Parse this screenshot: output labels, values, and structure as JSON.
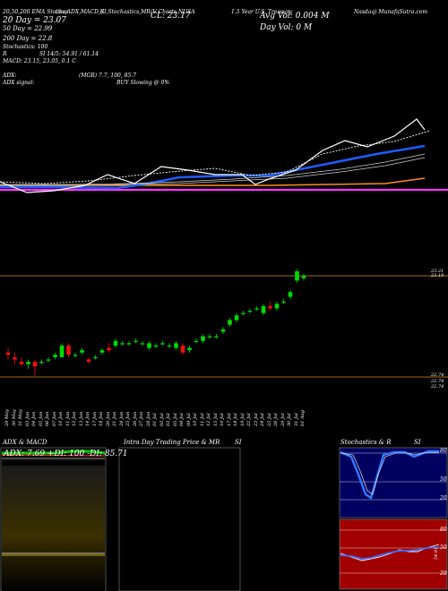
{
  "header": {
    "line1_left": "20,50,200 EMA Stochas",
    "line1_mid": "tics,ADX,MACD,R",
    "line1_mid2": "SI,Stochastics,MR",
    "line1_mid3": "1.5 Year U.S. Treasury",
    "line1_right": "Nasdaq) MunafaSutra.com",
    "symbol": "(V Charts NUSA",
    "cl": "CL: 23.17",
    "avg_vol": "Avg Vol: 0.004  M",
    "day_vol": "Day Vol: 0  M",
    "ema20": "20  Day = 23.07",
    "ema50": "50  Day = 22.99",
    "ema200": "200  Day = 22.8",
    "stoch": "Stochastics: 100",
    "rsi": "SI 14/5: 54.91 / 61.14",
    "rsi_prefix": "R",
    "macd": "MACD: 23.15,  23.05, 0.1 C",
    "adx": "ADX:",
    "adx_val": "(MGR) 7.7,  100,  85.7",
    "adx_signal": "ADX  signal:",
    "buy_signal": "BUY Slowing @ 0%"
  },
  "colors": {
    "ema20": "#ffffff",
    "ema50": "#1e5cff",
    "ema200": "#ff8c1a",
    "pink": "#ff33ff",
    "up": "#00dd00",
    "down": "#ee1111",
    "level": "#a06a1a"
  },
  "price_levels": {
    "top": "23.21",
    "top2": "23.19",
    "bottom1": "22.74",
    "bottom2": "22.74",
    "bottom3": "22.74"
  },
  "dates": [
    "29 May",
    "30 May",
    "31 May",
    "03 Jun",
    "04 Jun",
    "05 Jun",
    "06 Jun",
    "07 Jun",
    "10 Jun",
    "11 Jun",
    "12 Jun",
    "13 Jun",
    "14 Jun",
    "17 Jun",
    "18 Jun",
    "20 Jun",
    "21 Jun",
    "24 Jun",
    "25 Jun",
    "26 Jun",
    "27 Jun",
    "28 Jun",
    "01 Jul",
    "02 Jul",
    "03 Jul",
    "05 Jul",
    "08 Jul",
    "09 Jul",
    "10 Jul",
    "11 Jul",
    "12 Jul",
    "15 Jul",
    "16 Jul",
    "17 Jul",
    "18 Jul",
    "19 Jul",
    "22 Jul",
    "23 Jul",
    "24 Jul",
    "25 Jul",
    "26 Jul",
    "29 Jul",
    "30 Jul",
    "31 Jul",
    "01 Aug"
  ],
  "panels": {
    "adx_title": "ADX  & MACD",
    "adx_readout": "ADX: 7.69  +DI: 100  -DI: 85.71",
    "intraday_title": "Intra  Day Trading Price  & MR",
    "intraday_title2": "SI",
    "stoch_title": "Stochastics & R",
    "stoch_title2": "SI",
    "stoch_labels": [
      "80",
      "50",
      "20"
    ],
    "rsi_labels": [
      "80",
      "50",
      "20"
    ],
    "rsi_value": "54.91"
  },
  "chart_data": {
    "type": "candlestick",
    "title": "",
    "x": [
      "29 May",
      "30 May",
      "31 May",
      "03 Jun",
      "04 Jun",
      "05 Jun",
      "06 Jun",
      "07 Jun",
      "10 Jun",
      "11 Jun",
      "12 Jun",
      "13 Jun",
      "14 Jun",
      "17 Jun",
      "18 Jun",
      "20 Jun",
      "21 Jun",
      "24 Jun",
      "25 Jun",
      "26 Jun",
      "27 Jun",
      "28 Jun",
      "01 Jul",
      "02 Jul",
      "03 Jul",
      "05 Jul",
      "08 Jul",
      "09 Jul",
      "10 Jul",
      "11 Jul",
      "12 Jul",
      "15 Jul",
      "16 Jul",
      "17 Jul",
      "18 Jul",
      "19 Jul",
      "22 Jul",
      "23 Jul",
      "24 Jul",
      "25 Jul",
      "26 Jul",
      "29 Jul",
      "30 Jul",
      "31 Jul",
      "01 Aug"
    ],
    "ylim": [
      22.7,
      23.24
    ],
    "candles": [
      {
        "o": 22.84,
        "c": 22.83,
        "h": 22.86,
        "l": 22.81
      },
      {
        "o": 22.82,
        "c": 22.81,
        "h": 22.84,
        "l": 22.79
      },
      {
        "o": 22.8,
        "c": 22.79,
        "h": 22.82,
        "l": 22.78
      },
      {
        "o": 22.79,
        "c": 22.8,
        "h": 22.81,
        "l": 22.77
      },
      {
        "o": 22.8,
        "c": 22.78,
        "h": 22.81,
        "l": 22.74
      },
      {
        "o": 22.8,
        "c": 22.8,
        "h": 22.81,
        "l": 22.79
      },
      {
        "o": 22.81,
        "c": 22.81,
        "h": 22.82,
        "l": 22.8
      },
      {
        "o": 22.82,
        "c": 22.83,
        "h": 22.84,
        "l": 22.81
      },
      {
        "o": 22.82,
        "c": 22.87,
        "h": 22.88,
        "l": 22.82
      },
      {
        "o": 22.87,
        "c": 22.83,
        "h": 22.88,
        "l": 22.82
      },
      {
        "o": 22.83,
        "c": 22.83,
        "h": 22.84,
        "l": 22.82
      },
      {
        "o": 22.84,
        "c": 22.85,
        "h": 22.86,
        "l": 22.83
      },
      {
        "o": 22.81,
        "c": 22.8,
        "h": 22.82,
        "l": 22.79
      },
      {
        "o": 22.82,
        "c": 22.82,
        "h": 22.83,
        "l": 22.81
      },
      {
        "o": 22.84,
        "c": 22.85,
        "h": 22.86,
        "l": 22.83
      },
      {
        "o": 22.86,
        "c": 22.85,
        "h": 22.88,
        "l": 22.84
      },
      {
        "o": 22.87,
        "c": 22.89,
        "h": 22.9,
        "l": 22.86
      },
      {
        "o": 22.88,
        "c": 22.88,
        "h": 22.89,
        "l": 22.87
      },
      {
        "o": 22.88,
        "c": 22.88,
        "h": 22.89,
        "l": 22.87
      },
      {
        "o": 22.89,
        "c": 22.89,
        "h": 22.9,
        "l": 22.88
      },
      {
        "o": 22.88,
        "c": 22.88,
        "h": 22.89,
        "l": 22.87
      },
      {
        "o": 22.86,
        "c": 22.88,
        "h": 22.89,
        "l": 22.85
      },
      {
        "o": 22.87,
        "c": 22.87,
        "h": 22.88,
        "l": 22.86
      },
      {
        "o": 22.88,
        "c": 22.88,
        "h": 22.89,
        "l": 22.87
      },
      {
        "o": 22.87,
        "c": 22.87,
        "h": 22.88,
        "l": 22.86
      },
      {
        "o": 22.86,
        "c": 22.88,
        "h": 22.89,
        "l": 22.85
      },
      {
        "o": 22.87,
        "c": 22.84,
        "h": 22.88,
        "l": 22.83
      },
      {
        "o": 22.85,
        "c": 22.86,
        "h": 22.87,
        "l": 22.84
      },
      {
        "o": 22.89,
        "c": 22.89,
        "h": 22.9,
        "l": 22.88
      },
      {
        "o": 22.89,
        "c": 22.91,
        "h": 22.92,
        "l": 22.88
      },
      {
        "o": 22.91,
        "c": 22.91,
        "h": 22.92,
        "l": 22.9
      },
      {
        "o": 22.91,
        "c": 22.91,
        "h": 22.92,
        "l": 22.9
      },
      {
        "o": 22.93,
        "c": 22.94,
        "h": 22.95,
        "l": 22.92
      },
      {
        "o": 22.96,
        "c": 22.98,
        "h": 22.99,
        "l": 22.95
      },
      {
        "o": 22.98,
        "c": 23.0,
        "h": 23.01,
        "l": 22.97
      },
      {
        "o": 23.01,
        "c": 23.01,
        "h": 23.02,
        "l": 23.0
      },
      {
        "o": 23.02,
        "c": 23.02,
        "h": 23.03,
        "l": 23.01
      },
      {
        "o": 23.03,
        "c": 23.03,
        "h": 23.04,
        "l": 23.02
      },
      {
        "o": 23.01,
        "c": 23.04,
        "h": 23.05,
        "l": 23.0
      },
      {
        "o": 23.04,
        "c": 23.03,
        "h": 23.06,
        "l": 23.02
      },
      {
        "o": 23.03,
        "c": 23.05,
        "h": 23.06,
        "l": 23.02
      },
      {
        "o": 23.06,
        "c": 23.06,
        "h": 23.07,
        "l": 23.05
      },
      {
        "o": 23.08,
        "c": 23.1,
        "h": 23.11,
        "l": 23.07
      },
      {
        "o": 23.15,
        "c": 23.19,
        "h": 23.2,
        "l": 23.14
      },
      {
        "o": 23.16,
        "c": 23.17,
        "h": 23.18,
        "l": 23.15
      }
    ]
  }
}
